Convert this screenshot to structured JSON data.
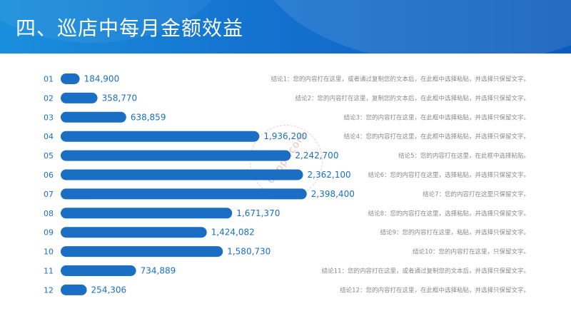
{
  "title": "四、巡店中每月金额效益",
  "watermark": "68ppt.com",
  "colors": {
    "bar": "#1a6fc4",
    "header": "#1472cf",
    "note": "#8a8a8a"
  },
  "chart_data": {
    "type": "bar",
    "orientation": "horizontal",
    "categories": [
      "01",
      "02",
      "03",
      "04",
      "05",
      "06",
      "07",
      "08",
      "09",
      "10",
      "11",
      "12"
    ],
    "values": [
      184900,
      358770,
      638859,
      1936200,
      2242700,
      2362100,
      2398400,
      1671370,
      1424082,
      1580730,
      734889,
      254306
    ],
    "value_labels": [
      "184,900",
      "358,770",
      "638,859",
      "1,936,200",
      "2,242,700",
      "2,362,100",
      "2,398,400",
      "1,671,370",
      "1,424,082",
      "1,580,730",
      "734,889",
      "254,306"
    ],
    "notes": [
      "结论1：您的内容打在这里，或者通过复制您的文本后，在此框中选择粘贴，并选择只保留文字。",
      "结论2：您的内容打在这里，复制您的文本后，在此框中选择粘贴，并选择只保留文字。",
      "结论3：您的内容打在这里，在此框中选择粘贴，并选择只保留文字。",
      "结论4：您的内容打在这里，在此框中选择粘贴，并选择只保留文字。",
      "结论5：您的内容打在这里，在此框中选择粘贴。",
      "结论6：您的内容打在这里，选择粘贴，并选择只保留文字。",
      "结论7：您的内容打在这里只保留文字。",
      "结论8：您的内容打在这里，选择粘贴，并选择只保留文字。",
      "结论9：您的内容打在这里，粘贴，并选择只保留文字。",
      "结论10：您的内容打在这里，只保留文字。",
      "结论11：您的内容打在这里，或者通过复制您的文本后，并选择只保留文字。",
      "结论12：您的内容打在这里，在此框中选择粘贴，并选择只保留文字。"
    ],
    "xlim": [
      0,
      2500000
    ],
    "legend": "none",
    "grid": false
  }
}
